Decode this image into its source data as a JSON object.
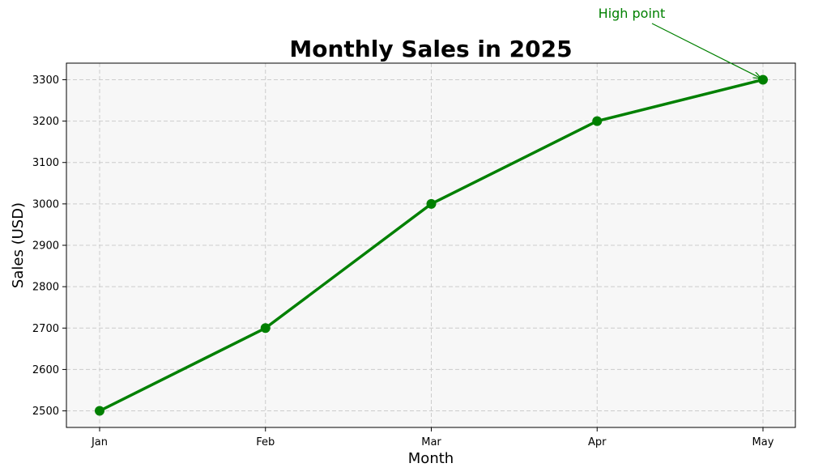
{
  "colors": {
    "line": "#008000",
    "plot_background": "#f7f7f7",
    "grid": "#cccccc",
    "annotation": "#008000"
  },
  "chart_data": {
    "type": "line",
    "title": "Monthly Sales in 2025",
    "xlabel": "Month",
    "ylabel": "Sales (USD)",
    "categories": [
      "Jan",
      "Feb",
      "Mar",
      "Apr",
      "May"
    ],
    "series": [
      {
        "values": [
          2500,
          2700,
          3000,
          3200,
          3300
        ]
      }
    ],
    "ylim": [
      2460,
      3340
    ],
    "yticks": [
      2500,
      2600,
      2700,
      2800,
      2900,
      3000,
      3100,
      3200,
      3300
    ],
    "grid": true,
    "annotation": {
      "text": "High point",
      "target_category": "May",
      "target_value": 3300
    }
  }
}
